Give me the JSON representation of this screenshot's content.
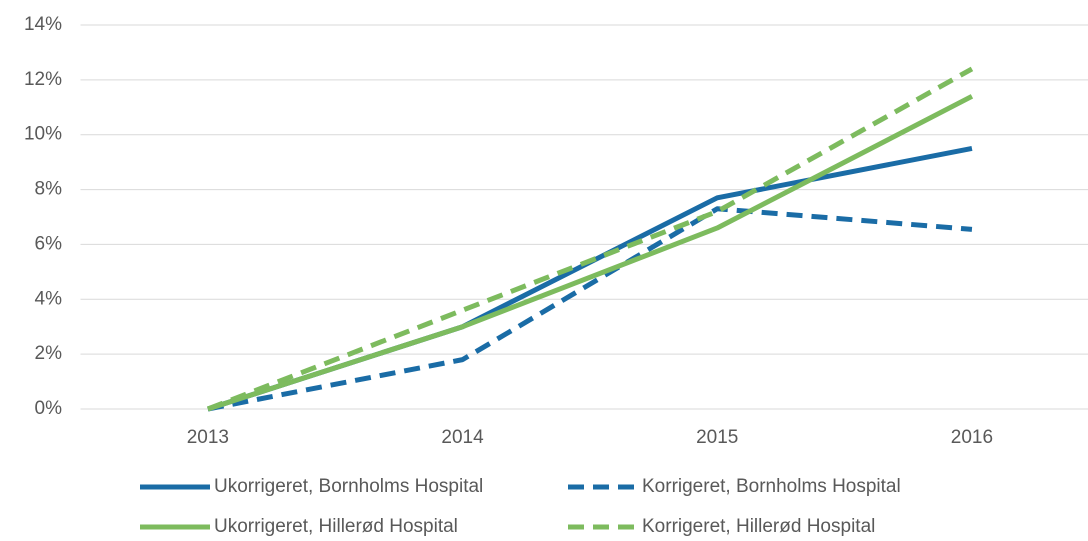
{
  "chart_data": {
    "type": "line",
    "categories": [
      "2013",
      "2014",
      "2015",
      "2016"
    ],
    "series": [
      {
        "name": "Ukorrigeret, Bornholms Hospital",
        "color": "#1a6ca6",
        "dashed": false,
        "values": [
          0,
          3.0,
          7.7,
          9.5
        ]
      },
      {
        "name": "Korrigeret, Bornholms Hospital",
        "color": "#1a6ca6",
        "dashed": true,
        "values": [
          0,
          1.8,
          7.3,
          6.55
        ]
      },
      {
        "name": "Ukorrigeret, Hillerød Hospital",
        "color": "#7dbb5e",
        "dashed": false,
        "values": [
          0,
          3.0,
          6.6,
          11.4
        ]
      },
      {
        "name": "Korrigeret, Hillerød Hospital",
        "color": "#7dbb5e",
        "dashed": true,
        "values": [
          0,
          3.6,
          7.2,
          12.4
        ]
      }
    ],
    "ylim": [
      0,
      14
    ],
    "yticks": [
      {
        "value": 0,
        "label": "0%"
      },
      {
        "value": 2,
        "label": "2%"
      },
      {
        "value": 4,
        "label": "4%"
      },
      {
        "value": 6,
        "label": "6%"
      },
      {
        "value": 8,
        "label": "8%"
      },
      {
        "value": 10,
        "label": "10%"
      },
      {
        "value": 12,
        "label": "12%"
      },
      {
        "value": 14,
        "label": "14%"
      }
    ],
    "grid": true,
    "legend": "bottom"
  }
}
